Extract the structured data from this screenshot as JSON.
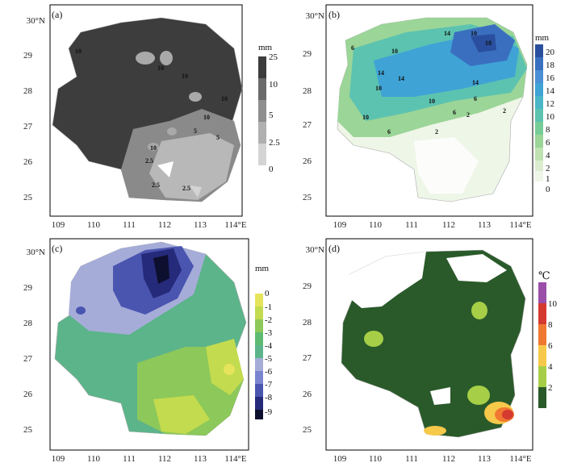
{
  "panels": [
    {
      "id": "a",
      "label": "(a)",
      "lat_ticks": [
        "30°N",
        "29",
        "28",
        "27",
        "26",
        "25"
      ],
      "lon_ticks": [
        "109",
        "110",
        "111",
        "112",
        "113",
        "114°E"
      ],
      "colorbar": {
        "unit": "mm",
        "labels": [
          "25",
          "10",
          "5",
          "2.5",
          "0"
        ],
        "colors": [
          "#3c3c3c",
          "#6a6a6a",
          "#8e8e8e",
          "#b0b0b0",
          "#d4d4d4"
        ]
      },
      "contour_labels": [
        "10",
        "10",
        "10",
        "10",
        "10",
        "10",
        "5",
        "5",
        "2.5",
        "2.5",
        "2.5"
      ]
    },
    {
      "id": "b",
      "label": "(b)",
      "lat_ticks": [
        "30°N",
        "29",
        "28",
        "27",
        "26",
        "25"
      ],
      "lon_ticks": [
        "109",
        "110",
        "111",
        "112",
        "113",
        "114°E"
      ],
      "colorbar": {
        "unit": "mm",
        "labels": [
          "20",
          "18",
          "16",
          "14",
          "12",
          "10",
          "8",
          "6",
          "4",
          "2",
          "1",
          "0"
        ],
        "colors": [
          "#2a4f9e",
          "#3a6fc0",
          "#4b8fd6",
          "#3fa3d6",
          "#4ab6c8",
          "#5cc3b0",
          "#78cc98",
          "#9bd597",
          "#bfe2b0",
          "#dbeccf",
          "#eef6e8"
        ]
      },
      "contour_labels": [
        "6",
        "10",
        "14",
        "10",
        "18",
        "14",
        "14",
        "10",
        "14",
        "10",
        "6",
        "10",
        "6",
        "6",
        "2",
        "2",
        "2"
      ]
    },
    {
      "id": "c",
      "label": "(c)",
      "lat_ticks": [
        "30°N",
        "29",
        "28",
        "27",
        "26",
        "25"
      ],
      "lon_ticks": [
        "109",
        "110",
        "111",
        "112",
        "113",
        "114°E"
      ],
      "colorbar": {
        "unit": "mm",
        "labels": [
          "0",
          "-1",
          "-2",
          "-3",
          "-4",
          "-5",
          "-6",
          "-7",
          "-8",
          "-9"
        ],
        "colors": [
          "#e6e45a",
          "#c3db4f",
          "#8cc85a",
          "#5fbb73",
          "#5cb48a",
          "#a6acd8",
          "#7b84cf",
          "#4a55b0",
          "#252a7a",
          "#0d0f2e"
        ]
      }
    },
    {
      "id": "d",
      "label": "(d)",
      "lat_ticks": [
        "30°N",
        "29",
        "28",
        "27",
        "26",
        "25"
      ],
      "lon_ticks": [
        "109",
        "110",
        "111",
        "112",
        "113",
        "114°E"
      ],
      "colorbar": {
        "unit": "℃",
        "labels": [
          "10",
          "8",
          "6",
          "4",
          "2"
        ],
        "colors": [
          "#9b4fa8",
          "#d43a30",
          "#f07830",
          "#f7c94a",
          "#a6cf47",
          "#2a5a2a"
        ]
      }
    }
  ]
}
